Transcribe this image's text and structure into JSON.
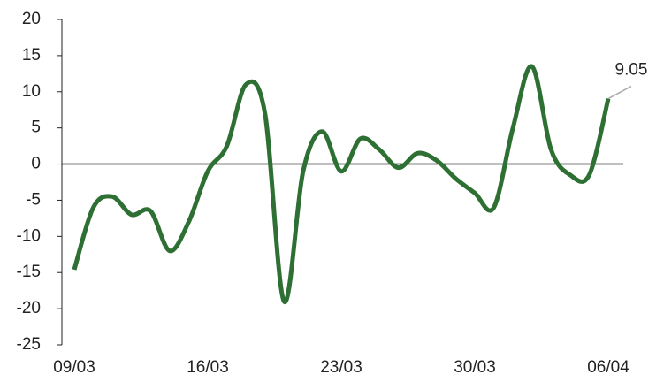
{
  "chart_data": {
    "type": "line",
    "categories": [
      "09/03",
      null,
      null,
      null,
      null,
      null,
      null,
      "16/03",
      null,
      null,
      null,
      null,
      null,
      null,
      "23/03",
      null,
      null,
      null,
      null,
      null,
      null,
      "30/03",
      null,
      null,
      null,
      null,
      null,
      null,
      "06/04"
    ],
    "series": [
      {
        "color": "#2e7034",
        "values": [
          -14.6,
          -6,
          -4.5,
          -7,
          -6.5,
          -12,
          -8,
          -1,
          2.5,
          11,
          7,
          -19,
          -1,
          4.5,
          -1,
          3.5,
          2,
          -0.5,
          1.5,
          0.5,
          -2,
          -4,
          -6,
          5,
          13.5,
          2,
          -1.5,
          -1.5,
          9.05
        ]
      }
    ],
    "ylim": [
      -25,
      20
    ],
    "yticks": [
      -25,
      -20,
      -15,
      -10,
      -5,
      0,
      5,
      10,
      15,
      20
    ]
  }
}
